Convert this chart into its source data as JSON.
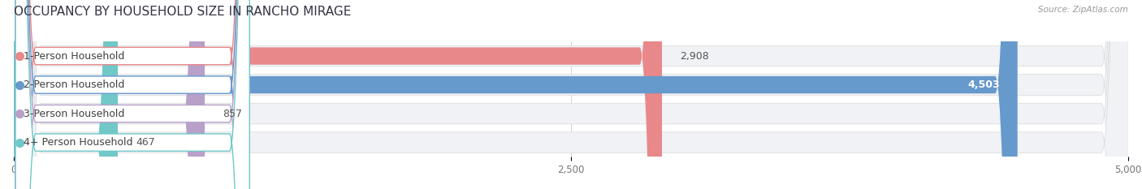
{
  "title": "OCCUPANCY BY HOUSEHOLD SIZE IN RANCHO MIRAGE",
  "source": "Source: ZipAtlas.com",
  "categories": [
    "1-Person Household",
    "2-Person Household",
    "3-Person Household",
    "4+ Person Household"
  ],
  "values": [
    2908,
    4503,
    857,
    467
  ],
  "bar_colors": [
    "#e8888a",
    "#6699cc",
    "#b8a0c8",
    "#70c8c8"
  ],
  "xlim": [
    0,
    5000
  ],
  "xticks": [
    0,
    2500,
    5000
  ],
  "title_fontsize": 11,
  "label_fontsize": 9,
  "value_fontsize": 9,
  "background_color": "#ffffff",
  "figsize": [
    14.06,
    2.33
  ],
  "dpi": 100
}
